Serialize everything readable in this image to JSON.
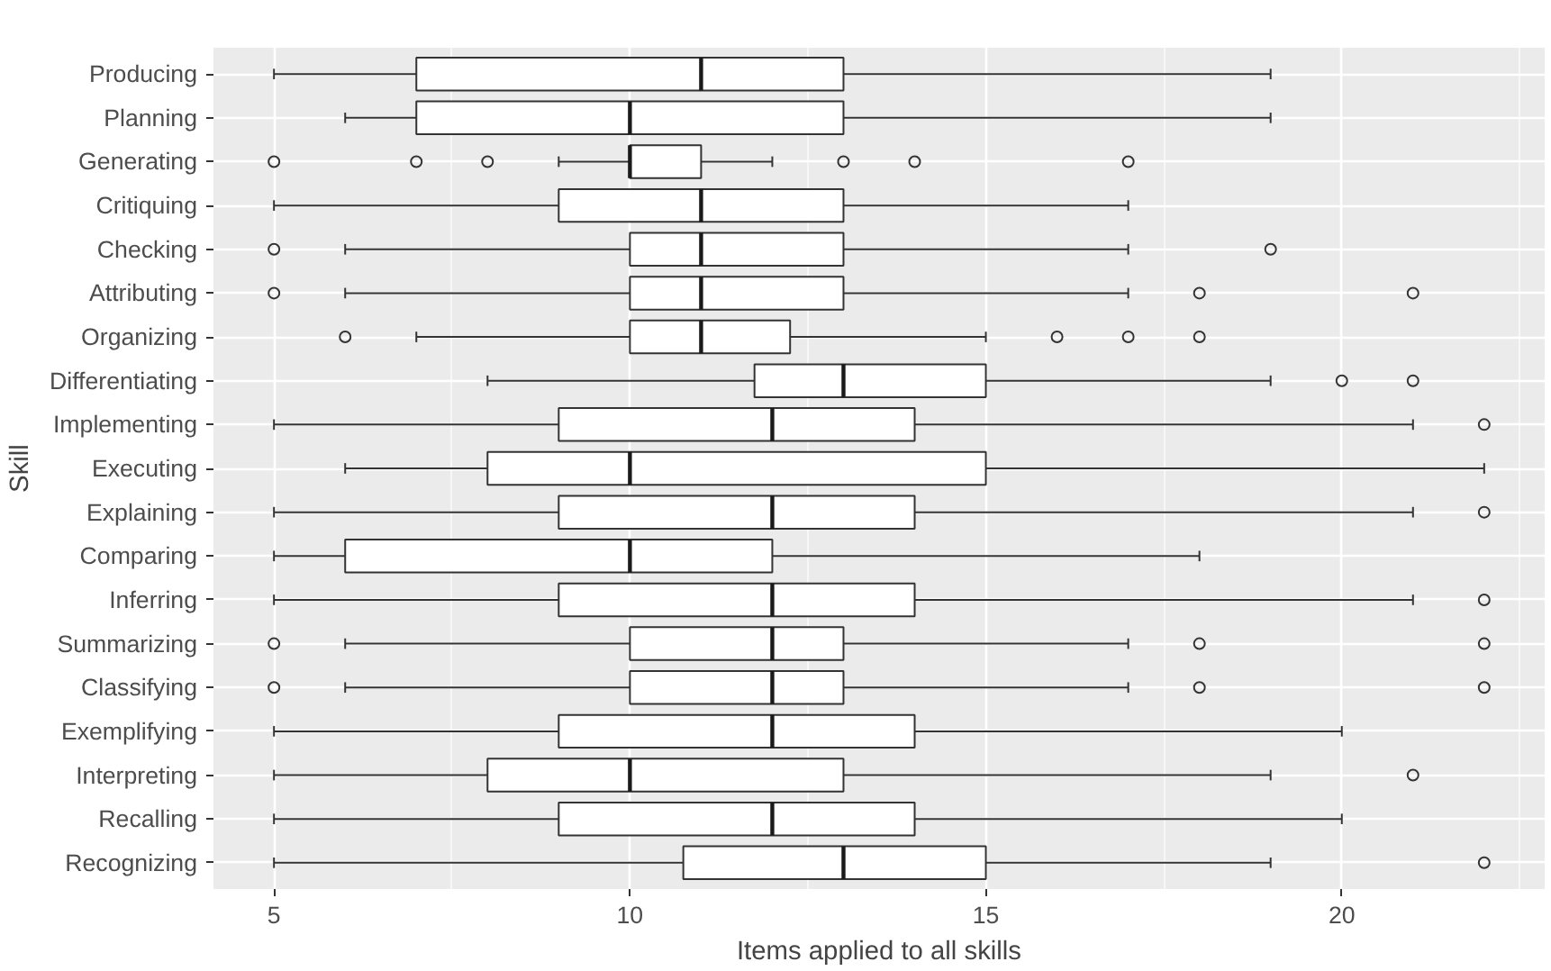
{
  "chart_data": {
    "type": "box",
    "orientation": "horizontal",
    "xlabel": "Items applied to all skills",
    "ylabel": "Skill",
    "categories": [
      "Producing",
      "Planning",
      "Generating",
      "Critiquing",
      "Checking",
      "Attributing",
      "Organizing",
      "Differentiating",
      "Implementing",
      "Executing",
      "Explaining",
      "Comparing",
      "Inferring",
      "Summarizing",
      "Classifying",
      "Exemplifying",
      "Interpreting",
      "Recalling",
      "Recognizing"
    ],
    "boxes": [
      {
        "low": 5,
        "q1": 7,
        "median": 11,
        "q3": 13,
        "high": 19
      },
      {
        "low": 6,
        "q1": 7,
        "median": 10,
        "q3": 13,
        "high": 19
      },
      {
        "low": 9,
        "q1": 10,
        "median": 10,
        "q3": 11,
        "high": 12,
        "outliers": [
          5,
          7,
          8,
          13,
          14,
          17
        ]
      },
      {
        "low": 5,
        "q1": 9,
        "median": 11,
        "q3": 13,
        "high": 17
      },
      {
        "low": 6,
        "q1": 10,
        "median": 11,
        "q3": 13,
        "high": 17,
        "outliers": [
          5,
          19
        ]
      },
      {
        "low": 6,
        "q1": 10,
        "median": 11,
        "q3": 13,
        "high": 17,
        "outliers": [
          5,
          18,
          21
        ]
      },
      {
        "low": 7,
        "q1": 10,
        "median": 11,
        "q3": 12.25,
        "high": 15,
        "outliers": [
          6,
          16,
          17,
          18
        ]
      },
      {
        "low": 8,
        "q1": 11.75,
        "median": 13,
        "q3": 15,
        "high": 19,
        "outliers": [
          20,
          21
        ]
      },
      {
        "low": 5,
        "q1": 9,
        "median": 12,
        "q3": 14,
        "high": 21,
        "outliers": [
          22
        ]
      },
      {
        "low": 6,
        "q1": 8,
        "median": 10,
        "q3": 15,
        "high": 22
      },
      {
        "low": 5,
        "q1": 9,
        "median": 12,
        "q3": 14,
        "high": 21,
        "outliers": [
          22
        ]
      },
      {
        "low": 5,
        "q1": 6,
        "median": 10,
        "q3": 12,
        "high": 18
      },
      {
        "low": 5,
        "q1": 9,
        "median": 12,
        "q3": 14,
        "high": 21,
        "outliers": [
          22
        ]
      },
      {
        "low": 6,
        "q1": 10,
        "median": 12,
        "q3": 13,
        "high": 17,
        "outliers": [
          5,
          18,
          22
        ]
      },
      {
        "low": 6,
        "q1": 10,
        "median": 12,
        "q3": 13,
        "high": 17,
        "outliers": [
          5,
          18,
          22
        ]
      },
      {
        "low": 5,
        "q1": 9,
        "median": 12,
        "q3": 14,
        "high": 20
      },
      {
        "low": 5,
        "q1": 8,
        "median": 10,
        "q3": 13,
        "high": 19,
        "outliers": [
          21
        ]
      },
      {
        "low": 5,
        "q1": 9,
        "median": 12,
        "q3": 14,
        "high": 20
      },
      {
        "low": 5,
        "q1": 10.75,
        "median": 13,
        "q3": 15,
        "high": 19,
        "outliers": [
          22
        ]
      }
    ],
    "color": "#ffffff",
    "xlim": [
      4.15,
      22.85
    ],
    "xticks": [
      5,
      10,
      15,
      20
    ],
    "grid": true
  }
}
